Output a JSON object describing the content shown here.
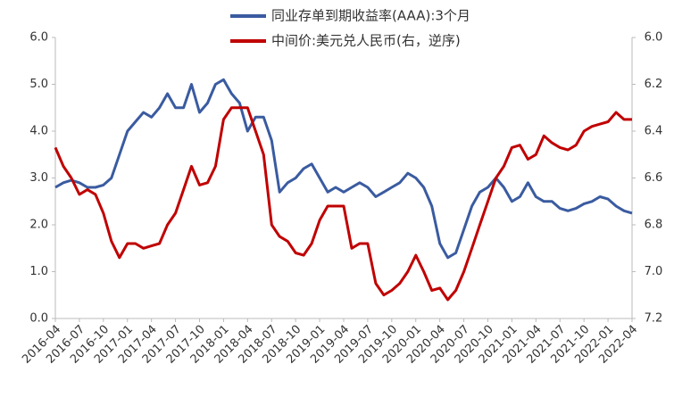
{
  "chart_data": {
    "type": "line",
    "x": [
      "2016-04",
      "2016-05",
      "2016-06",
      "2016-07",
      "2016-08",
      "2016-09",
      "2016-10",
      "2016-11",
      "2016-12",
      "2017-01",
      "2017-02",
      "2017-03",
      "2017-04",
      "2017-05",
      "2017-06",
      "2017-07",
      "2017-08",
      "2017-09",
      "2017-10",
      "2017-11",
      "2017-12",
      "2018-01",
      "2018-02",
      "2018-03",
      "2018-04",
      "2018-05",
      "2018-06",
      "2018-07",
      "2018-08",
      "2018-09",
      "2018-10",
      "2018-11",
      "2018-12",
      "2019-01",
      "2019-02",
      "2019-03",
      "2019-04",
      "2019-05",
      "2019-06",
      "2019-07",
      "2019-08",
      "2019-09",
      "2019-10",
      "2019-11",
      "2019-12",
      "2020-01",
      "2020-02",
      "2020-03",
      "2020-04",
      "2020-05",
      "2020-06",
      "2020-07",
      "2020-08",
      "2020-09",
      "2020-10",
      "2020-11",
      "2020-12",
      "2021-01",
      "2021-02",
      "2021-03",
      "2021-04",
      "2021-05",
      "2021-06",
      "2021-07",
      "2021-08",
      "2021-09",
      "2021-10",
      "2021-11",
      "2021-12",
      "2022-01",
      "2022-02",
      "2022-03",
      "2022-04"
    ],
    "xticks": [
      "2016-04",
      "2016-07",
      "2016-10",
      "2017-01",
      "2017-04",
      "2017-07",
      "2017-10",
      "2018-01",
      "2018-04",
      "2018-07",
      "2018-10",
      "2019-01",
      "2019-04",
      "2019-07",
      "2019-10",
      "2020-01",
      "2020-04",
      "2020-07",
      "2020-10",
      "2021-01",
      "2021-04",
      "2021-07",
      "2021-10",
      "2022-01",
      "2022-04"
    ],
    "series": [
      {
        "name": "同业存单到期收益率(AAA):3个月",
        "color": "#3a5ba0",
        "values": [
          2.8,
          2.9,
          2.95,
          2.9,
          2.8,
          2.8,
          2.85,
          3.0,
          3.5,
          4.0,
          4.2,
          4.4,
          4.3,
          4.5,
          4.8,
          4.5,
          4.5,
          5.0,
          4.4,
          4.6,
          5.0,
          5.1,
          4.8,
          4.6,
          4.0,
          4.3,
          4.3,
          3.8,
          2.7,
          2.9,
          3.0,
          3.2,
          3.3,
          3.0,
          2.7,
          2.8,
          2.7,
          2.8,
          2.9,
          2.8,
          2.6,
          2.7,
          2.8,
          2.9,
          3.1,
          3.0,
          2.8,
          2.4,
          1.6,
          1.3,
          1.4,
          1.9,
          2.4,
          2.7,
          2.8,
          3.0,
          2.8,
          2.5,
          2.6,
          2.9,
          2.6,
          2.5,
          2.5,
          2.35,
          2.3,
          2.35,
          2.45,
          2.5,
          2.6,
          2.55,
          2.4,
          2.3,
          2.25
        ]
      },
      {
        "name": "中间价:美元兑人民币(右，逆序)",
        "color": "#c00000",
        "axis": "y2",
        "values": [
          6.47,
          6.55,
          6.6,
          6.67,
          6.65,
          6.67,
          6.75,
          6.87,
          6.94,
          6.88,
          6.88,
          6.9,
          6.89,
          6.88,
          6.8,
          6.75,
          6.65,
          6.55,
          6.63,
          6.62,
          6.55,
          6.35,
          6.3,
          6.3,
          6.3,
          6.4,
          6.5,
          6.8,
          6.85,
          6.87,
          6.92,
          6.93,
          6.88,
          6.78,
          6.72,
          6.72,
          6.72,
          6.9,
          6.88,
          6.88,
          7.05,
          7.1,
          7.08,
          7.05,
          7.0,
          6.93,
          7.0,
          7.08,
          7.07,
          7.12,
          7.08,
          7.0,
          6.9,
          6.8,
          6.7,
          6.6,
          6.55,
          6.47,
          6.46,
          6.52,
          6.5,
          6.42,
          6.45,
          6.47,
          6.48,
          6.46,
          6.4,
          6.38,
          6.37,
          6.36,
          6.32,
          6.35,
          6.35
        ]
      }
    ],
    "ylim": [
      0,
      6
    ],
    "yticks": [
      {
        "value": 0,
        "label": "0.0"
      },
      {
        "value": 1,
        "label": "1.0"
      },
      {
        "value": 2,
        "label": "2.0"
      },
      {
        "value": 3,
        "label": "3.0"
      },
      {
        "value": 4,
        "label": "4.0"
      },
      {
        "value": 5,
        "label": "5.0"
      },
      {
        "value": 6,
        "label": "6.0"
      }
    ],
    "y2lim": [
      7.2,
      6.0
    ],
    "y2ticks": [
      {
        "value": 6.0,
        "label": "6.0"
      },
      6.2,
      6.4,
      6.6,
      6.8,
      {
        "value": 7.0,
        "label": "7.0"
      },
      7.2
    ]
  }
}
